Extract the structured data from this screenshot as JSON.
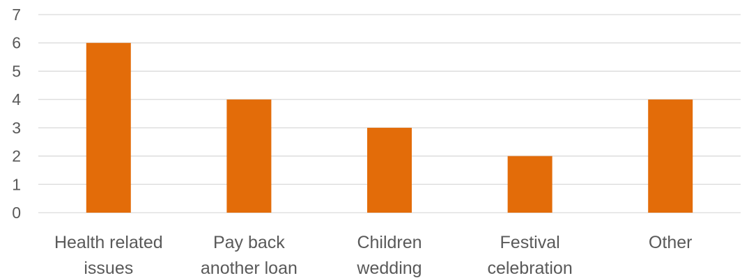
{
  "chart_data": {
    "type": "bar",
    "categories": [
      [
        "Health related",
        "issues"
      ],
      [
        "Pay back",
        "another loan"
      ],
      [
        "Children",
        "wedding"
      ],
      [
        "Festival",
        "celebration"
      ],
      [
        "Other"
      ]
    ],
    "values": [
      6,
      4,
      3,
      2,
      4
    ],
    "ylim": [
      0,
      7
    ],
    "yticks": [
      "0",
      "1",
      "2",
      "3",
      "4",
      "5",
      "6",
      "7"
    ],
    "title": "",
    "xlabel": "",
    "ylabel": "",
    "grid": true,
    "legend": "none",
    "bar_color": "#E36C09",
    "grid_color": "#D9D9D9",
    "text_color": "#595959"
  }
}
